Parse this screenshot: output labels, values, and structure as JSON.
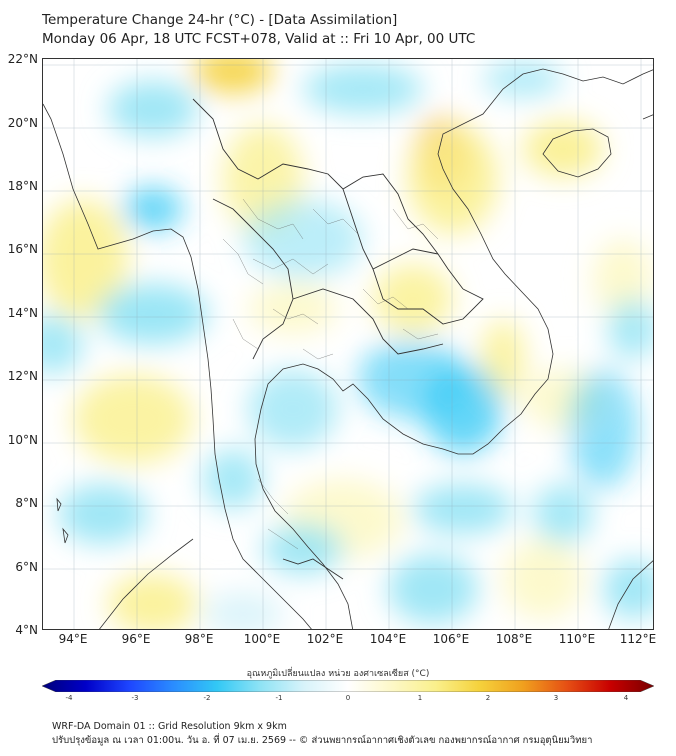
{
  "title": {
    "line1": "Temperature Change 24-hr (°C) - [Data Assimilation]",
    "line2": "Monday 06 Apr, 18 UTC FCST+078, Valid at :: Fri 10 Apr, 00 UTC"
  },
  "map": {
    "lat_labels": [
      "22°N",
      "20°N",
      "18°N",
      "16°N",
      "14°N",
      "12°N",
      "10°N",
      "8°N",
      "6°N",
      "4°N"
    ],
    "lon_labels": [
      "94°E",
      "96°E",
      "98°E",
      "100°E",
      "102°E",
      "104°E",
      "106°E",
      "108°E",
      "110°E",
      "112°E"
    ],
    "extent": {
      "lon_min": 93,
      "lon_max": 112.5,
      "lat_min": 4,
      "lat_max": 22.2
    }
  },
  "colorbar": {
    "title": "อุณหภูมิเปลี่ยนแปลง หน่วย องศาเซลเซียส (°C)",
    "ticks": [
      "-4",
      "-3",
      "-2",
      "-1",
      "0",
      "1",
      "2",
      "3",
      "4"
    ],
    "range": [
      -4,
      4
    ],
    "colors": [
      "#00007a",
      "#0000c8",
      "#1e46ff",
      "#2a8cff",
      "#32c8f5",
      "#8fe3f5",
      "#d8f3fa",
      "#ffffff",
      "#fdf8c8",
      "#faf08c",
      "#f5d23c",
      "#f0a01e",
      "#e65014",
      "#c80000",
      "#780000"
    ]
  },
  "footer": {
    "line1": "WRF-DA Domain 01 :: Grid Resolution 9km x 9km",
    "line2": "ปรับปรุงข้อมูล ณ เวลา 01:00น. วัน อ. ที่ 07 เม.ย. 2569 -- © ส่วนพยากรณ์อากาศเชิงตัวเลข กองพยากรณ์อากาศ กรมอุตุนิยมวิทยา"
  }
}
